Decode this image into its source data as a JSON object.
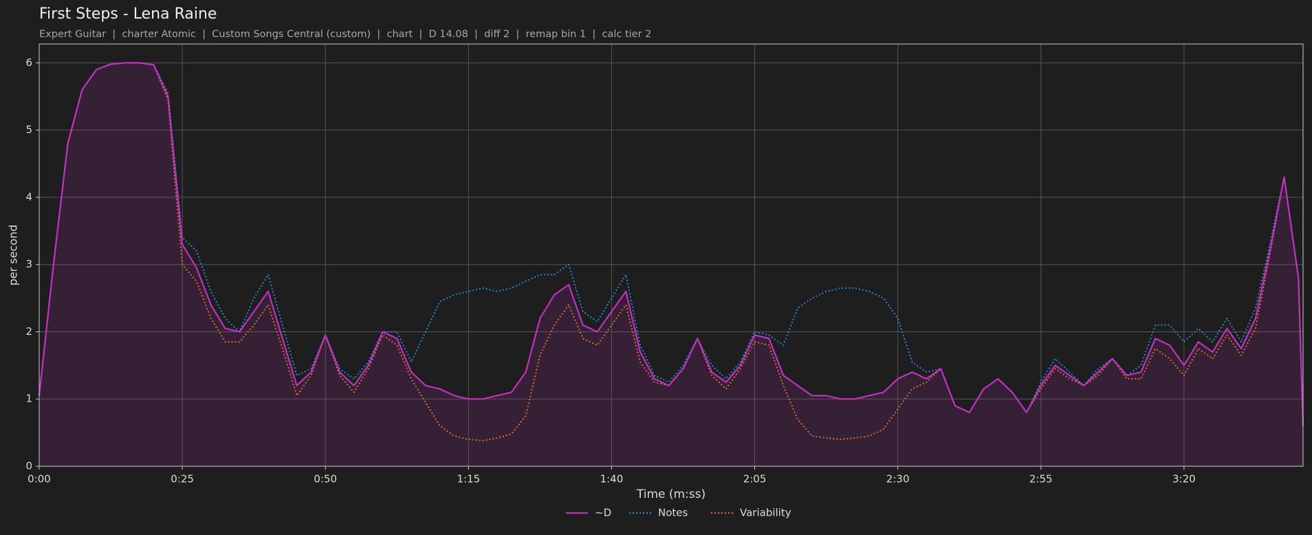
{
  "chart_data": {
    "type": "line",
    "title": "First Steps - Lena Raine",
    "subtitle": "Expert Guitar  |  charter Atomic  |  Custom Songs Central (custom)  |  chart  |  D 14.08  |  diff 2  |  remap bin 1  |  calc tier 2",
    "xlabel": "Time (m:ss)",
    "ylabel": "per second",
    "xlim": [
      0,
      220.8
    ],
    "ylim": [
      0,
      6.28
    ],
    "xticks": [
      {
        "value": 0,
        "label": "0:00"
      },
      {
        "value": 25,
        "label": "0:25"
      },
      {
        "value": 50,
        "label": "0:50"
      },
      {
        "value": 75,
        "label": "1:15"
      },
      {
        "value": 100,
        "label": "1:40"
      },
      {
        "value": 125,
        "label": "2:05"
      },
      {
        "value": 150,
        "label": "2:30"
      },
      {
        "value": 175,
        "label": "2:55"
      },
      {
        "value": 200,
        "label": "3:20"
      }
    ],
    "yticks": [
      0,
      1,
      2,
      3,
      4,
      5,
      6
    ],
    "grid": true,
    "legend": "bottom",
    "x": [
      0,
      2.5,
      5,
      7.5,
      10,
      12.5,
      15,
      17.5,
      20,
      22.5,
      25,
      27.5,
      30,
      32.5,
      35,
      37.5,
      40,
      42.5,
      45,
      47.5,
      50,
      52.5,
      55,
      57.5,
      60,
      62.5,
      65,
      67.5,
      70,
      72.5,
      75,
      77.5,
      80,
      82.5,
      85,
      87.5,
      90,
      92.5,
      95,
      97.5,
      100,
      102.5,
      105,
      107.5,
      110,
      112.5,
      115,
      117.5,
      120,
      122.5,
      125,
      127.5,
      130,
      132.5,
      135,
      137.5,
      140,
      142.5,
      145,
      147.5,
      150,
      152.5,
      155,
      157.5,
      160,
      162.5,
      165,
      167.5,
      170,
      172.5,
      175,
      177.5,
      180,
      182.5,
      185,
      187.5,
      190,
      192.5,
      195,
      197.5,
      200,
      202.5,
      205,
      207.5,
      210,
      212.5,
      215,
      217.5,
      220,
      220.8
    ],
    "series": [
      {
        "name": "~D",
        "color": "#c42fc4",
        "style": "solid",
        "fill": true,
        "values": [
          1.05,
          3.0,
          4.8,
          5.6,
          5.9,
          5.98,
          6.0,
          6.0,
          5.97,
          5.5,
          3.3,
          2.95,
          2.4,
          2.05,
          2.0,
          2.3,
          2.6,
          1.9,
          1.2,
          1.4,
          1.95,
          1.4,
          1.2,
          1.5,
          2.0,
          1.9,
          1.4,
          1.2,
          1.15,
          1.05,
          1.0,
          1.0,
          1.05,
          1.1,
          1.4,
          2.2,
          2.55,
          2.7,
          2.1,
          2.0,
          2.3,
          2.6,
          1.7,
          1.3,
          1.2,
          1.45,
          1.9,
          1.4,
          1.25,
          1.5,
          1.95,
          1.9,
          1.35,
          1.2,
          1.05,
          1.05,
          1.0,
          1.0,
          1.05,
          1.1,
          1.3,
          1.4,
          1.3,
          1.45,
          0.9,
          0.8,
          1.15,
          1.3,
          1.1,
          0.8,
          1.2,
          1.5,
          1.35,
          1.2,
          1.4,
          1.6,
          1.35,
          1.4,
          1.9,
          1.8,
          1.5,
          1.85,
          1.7,
          2.05,
          1.75,
          2.2,
          3.2,
          4.3,
          2.8,
          0.6
        ]
      },
      {
        "name": "Notes",
        "color": "#1f8fd0",
        "style": "dotted",
        "fill": false,
        "values": [
          1.05,
          3.0,
          4.8,
          5.6,
          5.9,
          5.98,
          6.0,
          6.0,
          5.97,
          5.55,
          3.4,
          3.2,
          2.6,
          2.2,
          2.0,
          2.5,
          2.85,
          2.1,
          1.35,
          1.45,
          1.95,
          1.45,
          1.3,
          1.55,
          2.0,
          2.0,
          1.55,
          2.0,
          2.45,
          2.55,
          2.6,
          2.65,
          2.6,
          2.65,
          2.75,
          2.85,
          2.85,
          3.0,
          2.3,
          2.15,
          2.5,
          2.85,
          1.8,
          1.35,
          1.25,
          1.5,
          1.9,
          1.5,
          1.3,
          1.55,
          2.0,
          1.95,
          1.8,
          2.35,
          2.5,
          2.6,
          2.65,
          2.65,
          2.6,
          2.5,
          2.2,
          1.55,
          1.4,
          1.45,
          0.9,
          0.8,
          1.15,
          1.3,
          1.1,
          0.8,
          1.25,
          1.6,
          1.4,
          1.2,
          1.45,
          1.6,
          1.35,
          1.5,
          2.1,
          2.1,
          1.85,
          2.05,
          1.85,
          2.2,
          1.85,
          2.35,
          3.3,
          4.3,
          2.8,
          0.6
        ]
      },
      {
        "name": "Variability",
        "color": "#e07020",
        "style": "dotted",
        "fill": false,
        "values": [
          1.05,
          3.0,
          4.8,
          5.6,
          5.9,
          5.98,
          6.0,
          6.0,
          5.97,
          5.45,
          3.0,
          2.75,
          2.2,
          1.85,
          1.85,
          2.1,
          2.4,
          1.75,
          1.05,
          1.35,
          1.95,
          1.35,
          1.1,
          1.45,
          1.95,
          1.8,
          1.3,
          0.95,
          0.6,
          0.45,
          0.4,
          0.38,
          0.42,
          0.48,
          0.75,
          1.65,
          2.1,
          2.4,
          1.9,
          1.8,
          2.1,
          2.4,
          1.55,
          1.25,
          1.2,
          1.45,
          1.9,
          1.35,
          1.15,
          1.45,
          1.85,
          1.8,
          1.2,
          0.7,
          0.45,
          0.42,
          0.4,
          0.42,
          0.45,
          0.55,
          0.85,
          1.15,
          1.25,
          1.45,
          0.9,
          0.8,
          1.15,
          1.3,
          1.1,
          0.8,
          1.15,
          1.45,
          1.3,
          1.2,
          1.35,
          1.6,
          1.3,
          1.3,
          1.75,
          1.6,
          1.35,
          1.75,
          1.6,
          1.95,
          1.65,
          2.05,
          3.15,
          4.3,
          2.8,
          0.6
        ]
      }
    ]
  }
}
